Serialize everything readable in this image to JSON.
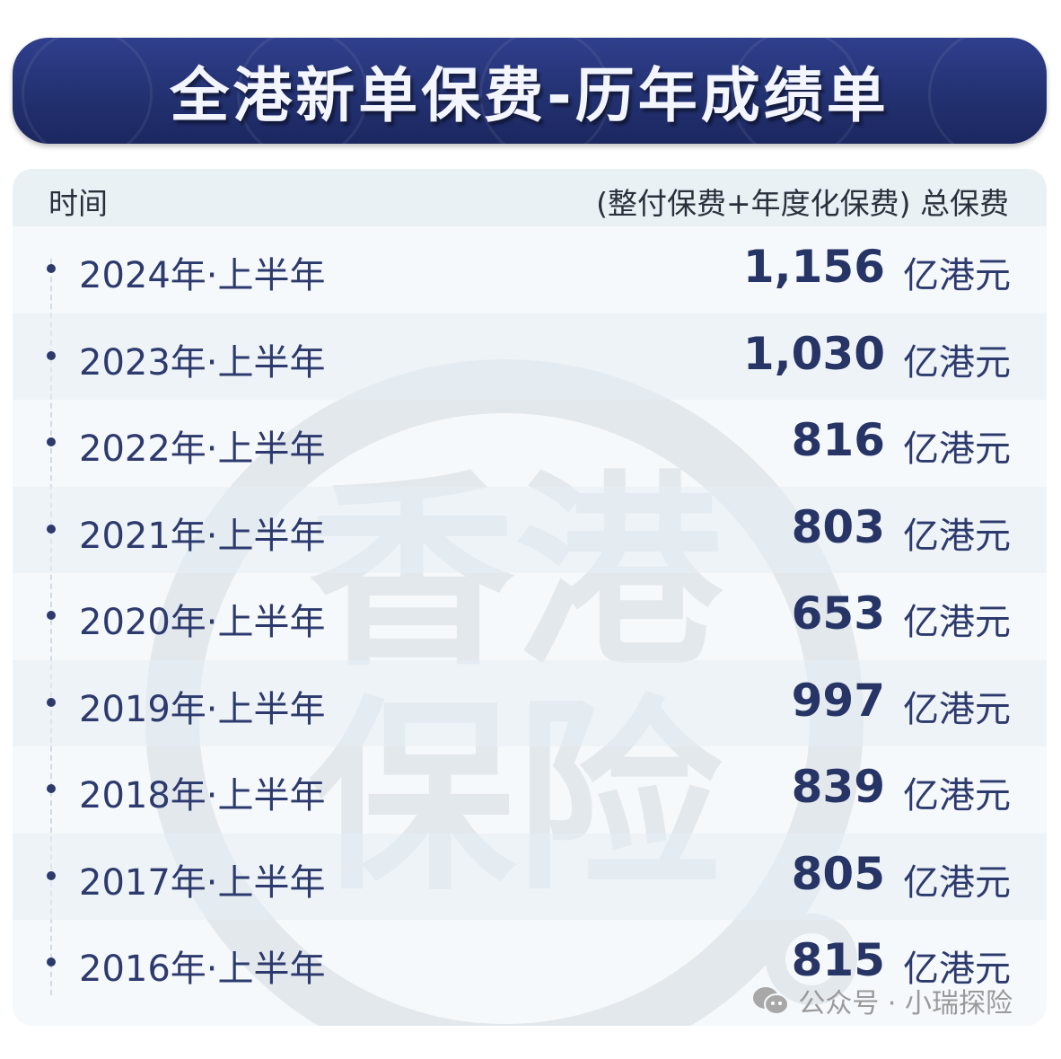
{
  "title": "全港新单保费-历年成绩单",
  "table": {
    "header_left": "时间",
    "header_right": "(整付保费+年度化保费) 总保费",
    "rows": [
      {
        "period": "2024年·上半年",
        "value": "1,156",
        "unit": "亿港元"
      },
      {
        "period": "2023年·上半年",
        "value": "1,030",
        "unit": "亿港元"
      },
      {
        "period": "2022年·上半年",
        "value": "816",
        "unit": "亿港元"
      },
      {
        "period": "2021年·上半年",
        "value": "803",
        "unit": "亿港元"
      },
      {
        "period": "2020年·上半年",
        "value": "653",
        "unit": "亿港元"
      },
      {
        "period": "2019年·上半年",
        "value": "997",
        "unit": "亿港元"
      },
      {
        "period": "2018年·上半年",
        "value": "839",
        "unit": "亿港元"
      },
      {
        "period": "2017年·上半年",
        "value": "805",
        "unit": "亿港元"
      },
      {
        "period": "2016年·上半年",
        "value": "815",
        "unit": "亿港元"
      }
    ]
  },
  "watermark": {
    "line1": "香港",
    "line2": "保险"
  },
  "footer": {
    "icon": "wechat-icon",
    "text": "公众号 · 小瑞探险"
  },
  "colors": {
    "banner": "#22306f",
    "text": "#263466",
    "watermark": "#e2e7ec"
  }
}
